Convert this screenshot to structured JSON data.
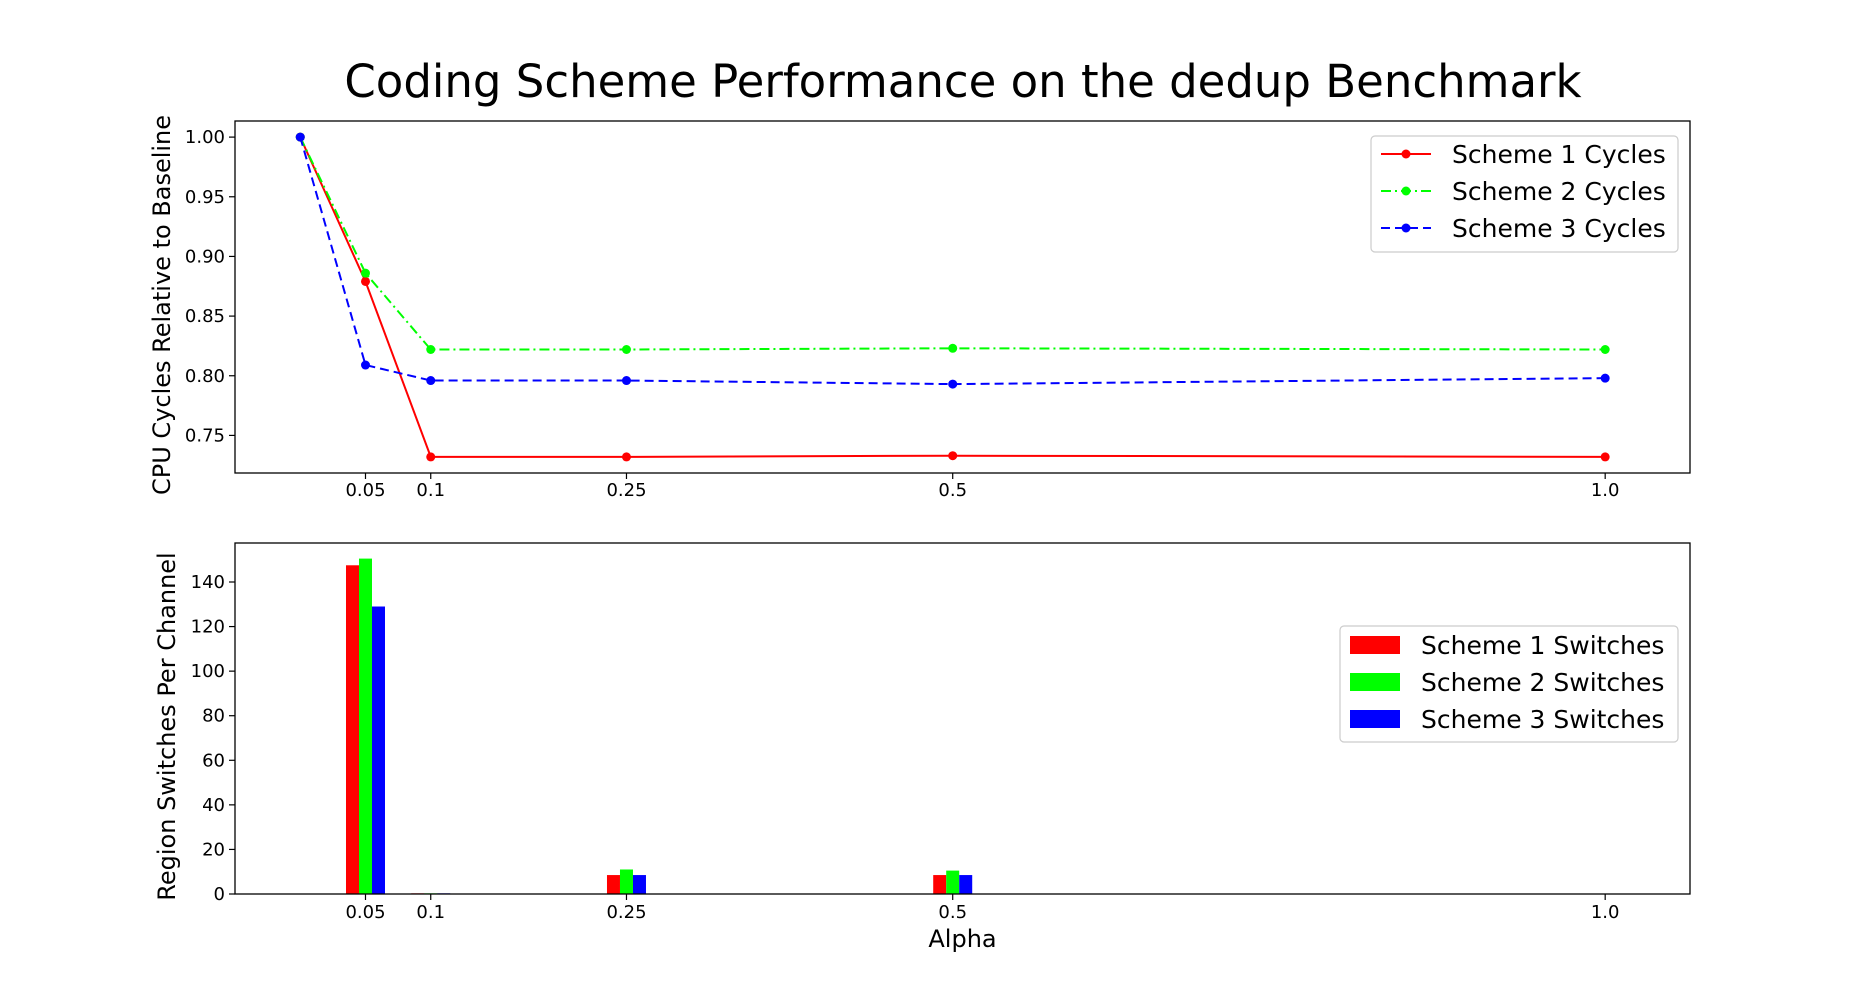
{
  "title": "Coding Scheme Performance on the dedup Benchmark",
  "colors": {
    "scheme1": "#ff0000",
    "scheme2": "#00ff00",
    "scheme3": "#0000ff"
  },
  "chart_data": [
    {
      "type": "line",
      "title": "Coding Scheme Performance on the dedup Benchmark",
      "xlabel": "",
      "ylabel": "CPU Cycles Relative to Baseline",
      "x": [
        0.0,
        0.05,
        0.1,
        0.25,
        0.5,
        1.0
      ],
      "xticks": [
        0.05,
        0.1,
        0.25,
        0.5,
        1.0
      ],
      "xtick_labels": [
        "0.05",
        "0.1",
        "0.25",
        "0.5",
        "1.0"
      ],
      "xlim": [
        -0.05,
        1.065
      ],
      "yticks": [
        0.75,
        0.8,
        0.85,
        0.9,
        0.95,
        1.0
      ],
      "ytick_labels": [
        "0.75",
        "0.80",
        "0.85",
        "0.90",
        "0.95",
        "1.00"
      ],
      "ylim": [
        0.7185,
        1.0135
      ],
      "grid": false,
      "legend_position": "top-right",
      "series": [
        {
          "name": "Scheme 1 Cycles",
          "color": "#ff0000",
          "dash": "solid",
          "values": [
            1.0,
            0.879,
            0.732,
            0.732,
            0.733,
            0.732
          ]
        },
        {
          "name": "Scheme 2 Cycles",
          "color": "#00ff00",
          "dash": "dashdot",
          "values": [
            1.0,
            0.886,
            0.822,
            0.822,
            0.823,
            0.822
          ]
        },
        {
          "name": "Scheme 3 Cycles",
          "color": "#0000ff",
          "dash": "dashed",
          "values": [
            1.0,
            0.809,
            0.796,
            0.796,
            0.793,
            0.798
          ]
        }
      ]
    },
    {
      "type": "bar",
      "title": "",
      "xlabel": "Alpha",
      "ylabel": "Region Switches Per Channel",
      "categories": [
        0.05,
        0.1,
        0.25,
        0.5,
        1.0
      ],
      "xticks": [
        0.05,
        0.1,
        0.25,
        0.5,
        1.0
      ],
      "xtick_labels": [
        "0.05",
        "0.1",
        "0.25",
        "0.5",
        "1.0"
      ],
      "xlim": [
        -0.05,
        1.065
      ],
      "yticks": [
        0,
        20,
        40,
        60,
        80,
        100,
        120,
        140
      ],
      "ytick_labels": [
        "0",
        "20",
        "40",
        "60",
        "80",
        "100",
        "120",
        "140"
      ],
      "ylim": [
        0,
        157.5
      ],
      "grid": false,
      "legend_position": "center-right",
      "series": [
        {
          "name": "Scheme 1 Switches",
          "color": "#ff0000",
          "values": [
            147.5,
            0.3,
            8.5,
            8.5,
            0
          ]
        },
        {
          "name": "Scheme 2 Switches",
          "color": "#00ff00",
          "values": [
            150.5,
            0.3,
            11,
            10.5,
            0
          ]
        },
        {
          "name": "Scheme 3 Switches",
          "color": "#0000ff",
          "values": [
            129,
            0.3,
            8.5,
            8.5,
            0
          ]
        }
      ]
    }
  ]
}
